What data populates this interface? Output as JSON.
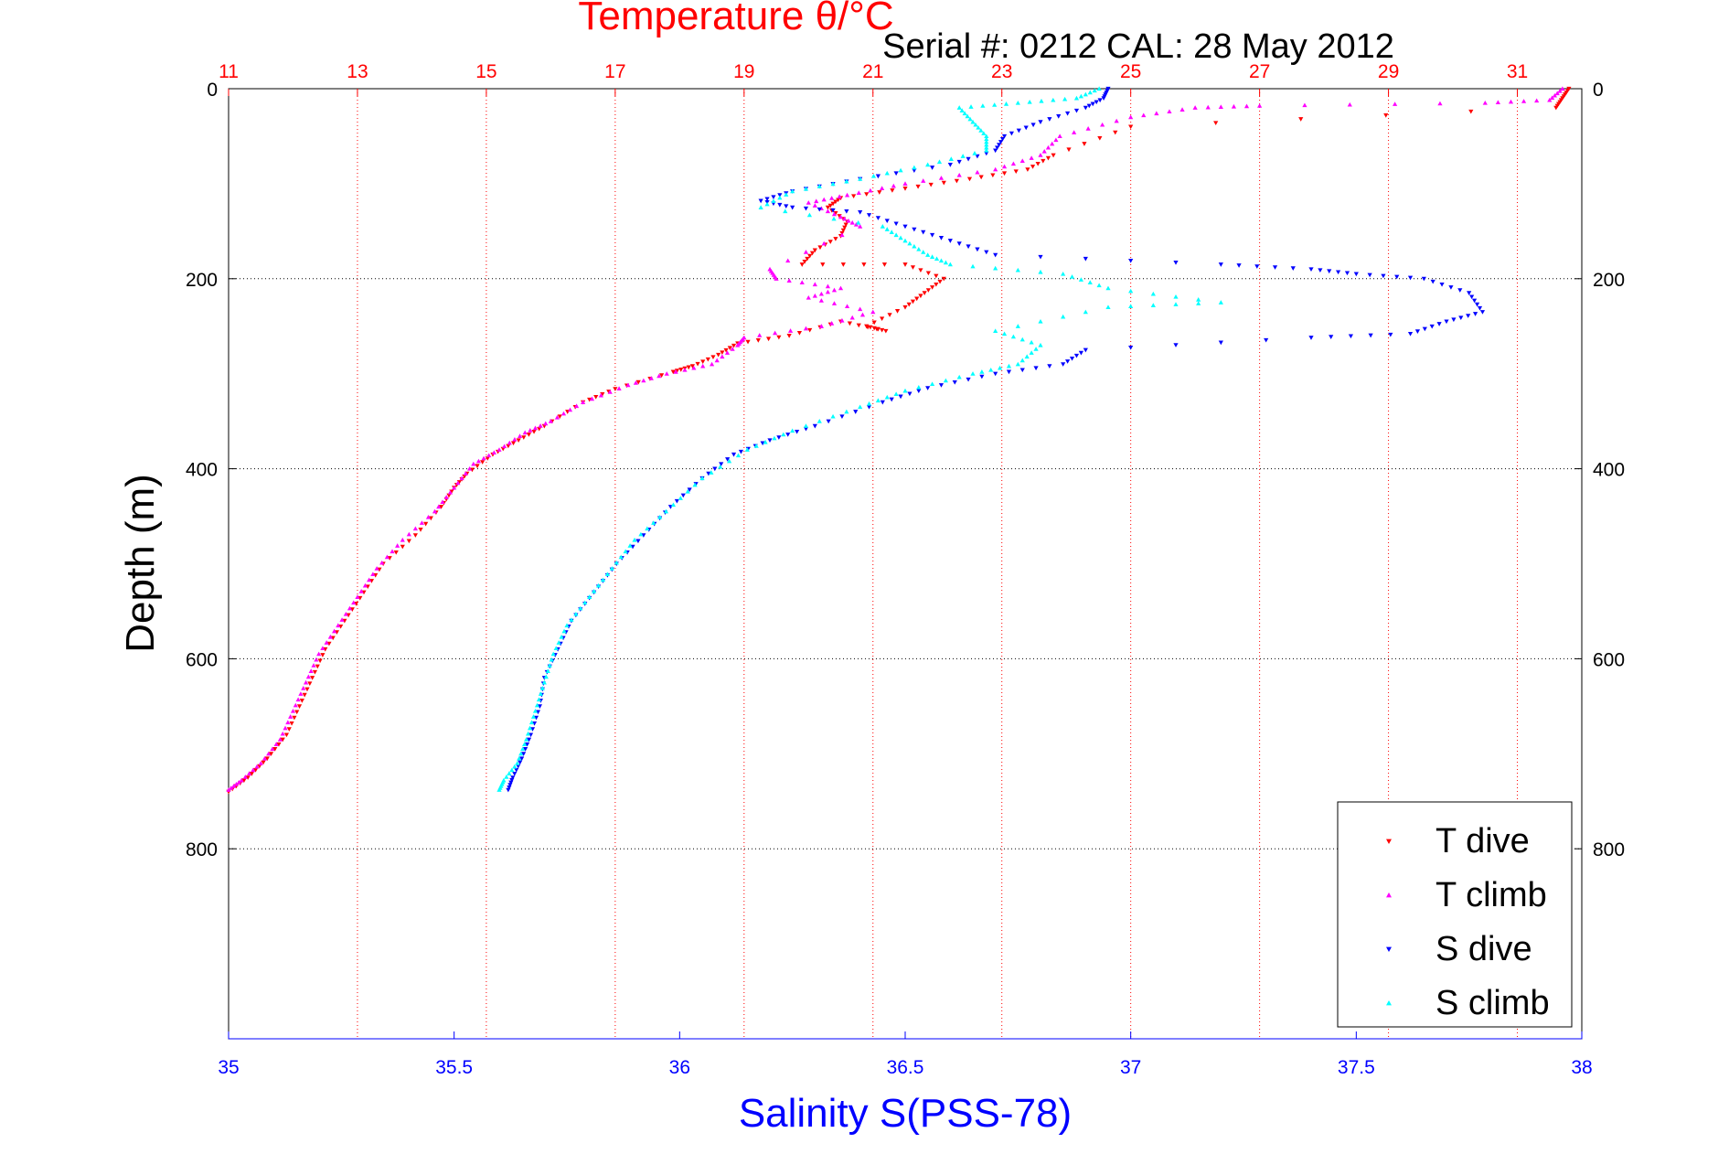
{
  "chart_data": {
    "type": "scatter",
    "title": "Temperature θ/°C",
    "subtitle": "Serial #: 0212  CAL: 28 May 2012",
    "xlabel": "Salinity S(PSS-78)",
    "ylabel": "Depth (m)",
    "xlim_salinity": [
      35,
      38
    ],
    "xlim_temperature": [
      11,
      32
    ],
    "ylim_depth": [
      0,
      1000
    ],
    "y_reversed": true,
    "grid": true,
    "legend_position": "bottom-right",
    "salinity_ticks": [
      "35",
      "35.5",
      "36",
      "36.5",
      "37",
      "37.5",
      "38"
    ],
    "temperature_ticks": [
      "11",
      "13",
      "15",
      "17",
      "19",
      "21",
      "23",
      "25",
      "27",
      "29",
      "31"
    ],
    "depth_ticks": [
      "0",
      "200",
      "400",
      "600",
      "800"
    ],
    "colors": {
      "t_dive": "#ff0000",
      "t_climb": "#ff00ff",
      "s_dive": "#0000ff",
      "s_climb": "#00ffff",
      "title": "#ff0000",
      "salinity_axis": "#0000ff",
      "temperature_grid": "#ff0000"
    },
    "series": [
      {
        "name": "T dive",
        "axis": "temperature",
        "marker": "down-triangle",
        "points": [
          [
            31.8,
            0
          ],
          [
            31.7,
            10
          ],
          [
            31.6,
            20
          ],
          [
            25,
            40
          ],
          [
            23.8,
            70
          ],
          [
            23.4,
            85
          ],
          [
            22.5,
            95
          ],
          [
            21.5,
            105
          ],
          [
            20.5,
            115
          ],
          [
            20.3,
            125
          ],
          [
            20.6,
            140
          ],
          [
            20.5,
            155
          ],
          [
            20.1,
            170
          ],
          [
            19.9,
            185
          ],
          [
            21.5,
            185
          ],
          [
            22.1,
            200
          ],
          [
            21.8,
            215
          ],
          [
            21.5,
            230
          ],
          [
            20.9,
            250
          ],
          [
            21.2,
            255
          ],
          [
            20.5,
            245
          ],
          [
            19.7,
            260
          ],
          [
            18.9,
            268
          ],
          [
            18.6,
            280
          ],
          [
            18.2,
            292
          ],
          [
            17.9,
            298
          ],
          [
            17.0,
            316
          ],
          [
            16.5,
            330
          ],
          [
            15.9,
            355
          ],
          [
            15.5,
            370
          ],
          [
            15.1,
            385
          ],
          [
            14.7,
            405
          ],
          [
            14.5,
            420
          ],
          [
            14.3,
            440
          ],
          [
            13.9,
            470
          ],
          [
            13.4,
            500
          ],
          [
            13.1,
            530
          ],
          [
            12.8,
            560
          ],
          [
            12.5,
            590
          ],
          [
            12.3,
            620
          ],
          [
            12.1,
            650
          ],
          [
            11.9,
            680
          ],
          [
            11.6,
            705
          ],
          [
            11.3,
            725
          ],
          [
            11.0,
            740
          ]
        ]
      },
      {
        "name": "T climb",
        "axis": "temperature",
        "marker": "up-triangle",
        "points": [
          [
            31.7,
            0
          ],
          [
            31.5,
            12
          ],
          [
            30.5,
            15
          ],
          [
            27.0,
            18
          ],
          [
            26.0,
            20
          ],
          [
            25.0,
            30
          ],
          [
            23.9,
            50
          ],
          [
            23.6,
            70
          ],
          [
            22.9,
            85
          ],
          [
            21.5,
            100
          ],
          [
            20.6,
            112
          ],
          [
            20.0,
            120
          ],
          [
            20.5,
            135
          ],
          [
            20.8,
            145
          ],
          [
            19.4,
            190
          ],
          [
            19.5,
            200
          ],
          [
            20.5,
            210
          ],
          [
            20.0,
            220
          ],
          [
            21.0,
            235
          ],
          [
            20.2,
            250
          ],
          [
            19.0,
            262
          ],
          [
            18.9,
            270
          ],
          [
            18.5,
            290
          ],
          [
            17.8,
            300
          ],
          [
            17.2,
            312
          ],
          [
            16.5,
            330
          ],
          [
            16.0,
            350
          ],
          [
            15.6,
            362
          ],
          [
            15.2,
            380
          ],
          [
            14.8,
            395
          ],
          [
            14.5,
            420
          ],
          [
            14.2,
            445
          ],
          [
            13.7,
            475
          ],
          [
            13.3,
            505
          ],
          [
            13.0,
            535
          ],
          [
            12.7,
            565
          ],
          [
            12.4,
            595
          ],
          [
            12.2,
            625
          ],
          [
            12.0,
            655
          ],
          [
            11.8,
            685
          ],
          [
            11.5,
            710
          ],
          [
            11.2,
            728
          ],
          [
            11.0,
            738
          ]
        ]
      },
      {
        "name": "S dive",
        "axis": "salinity",
        "marker": "down-triangle",
        "points": [
          [
            36.95,
            0
          ],
          [
            36.94,
            10
          ],
          [
            36.9,
            20
          ],
          [
            36.8,
            35
          ],
          [
            36.72,
            50
          ],
          [
            36.7,
            65
          ],
          [
            36.6,
            80
          ],
          [
            36.4,
            95
          ],
          [
            36.25,
            108
          ],
          [
            36.18,
            118
          ],
          [
            36.25,
            125
          ],
          [
            36.4,
            130
          ],
          [
            36.5,
            145
          ],
          [
            36.6,
            160
          ],
          [
            36.7,
            175
          ],
          [
            37.2,
            185
          ],
          [
            37.4,
            190
          ],
          [
            37.5,
            195
          ],
          [
            37.65,
            200
          ],
          [
            37.75,
            215
          ],
          [
            37.78,
            235
          ],
          [
            37.7,
            245
          ],
          [
            37.62,
            258
          ],
          [
            37.4,
            262
          ],
          [
            36.9,
            275
          ],
          [
            36.85,
            290
          ],
          [
            36.7,
            300
          ],
          [
            36.55,
            315
          ],
          [
            36.45,
            330
          ],
          [
            36.3,
            355
          ],
          [
            36.2,
            370
          ],
          [
            36.12,
            385
          ],
          [
            36.05,
            410
          ],
          [
            35.98,
            440
          ],
          [
            35.92,
            470
          ],
          [
            35.86,
            500
          ],
          [
            35.81,
            530
          ],
          [
            35.76,
            560
          ],
          [
            35.73,
            590
          ],
          [
            35.7,
            620
          ],
          [
            35.69,
            650
          ],
          [
            35.67,
            680
          ],
          [
            35.65,
            705
          ],
          [
            35.63,
            725
          ],
          [
            35.62,
            738
          ]
        ]
      },
      {
        "name": "S climb",
        "axis": "salinity",
        "marker": "up-triangle",
        "points": [
          [
            36.93,
            0
          ],
          [
            36.88,
            10
          ],
          [
            36.75,
            15
          ],
          [
            36.62,
            20
          ],
          [
            36.65,
            35
          ],
          [
            36.68,
            50
          ],
          [
            36.68,
            65
          ],
          [
            36.55,
            80
          ],
          [
            36.4,
            95
          ],
          [
            36.25,
            108
          ],
          [
            36.18,
            125
          ],
          [
            36.45,
            145
          ],
          [
            36.5,
            160
          ],
          [
            36.55,
            175
          ],
          [
            36.6,
            185
          ],
          [
            36.85,
            195
          ],
          [
            36.95,
            210
          ],
          [
            37.2,
            225
          ],
          [
            36.95,
            230
          ],
          [
            36.7,
            255
          ],
          [
            36.8,
            270
          ],
          [
            36.75,
            290
          ],
          [
            36.65,
            300
          ],
          [
            36.5,
            318
          ],
          [
            36.4,
            335
          ],
          [
            36.25,
            360
          ],
          [
            36.15,
            380
          ],
          [
            36.05,
            410
          ],
          [
            35.97,
            445
          ],
          [
            35.9,
            475
          ],
          [
            35.85,
            505
          ],
          [
            35.8,
            535
          ],
          [
            35.75,
            565
          ],
          [
            35.72,
            595
          ],
          [
            35.7,
            625
          ],
          [
            35.68,
            655
          ],
          [
            35.66,
            685
          ],
          [
            35.64,
            710
          ],
          [
            35.61,
            728
          ],
          [
            35.6,
            738
          ]
        ]
      }
    ]
  }
}
